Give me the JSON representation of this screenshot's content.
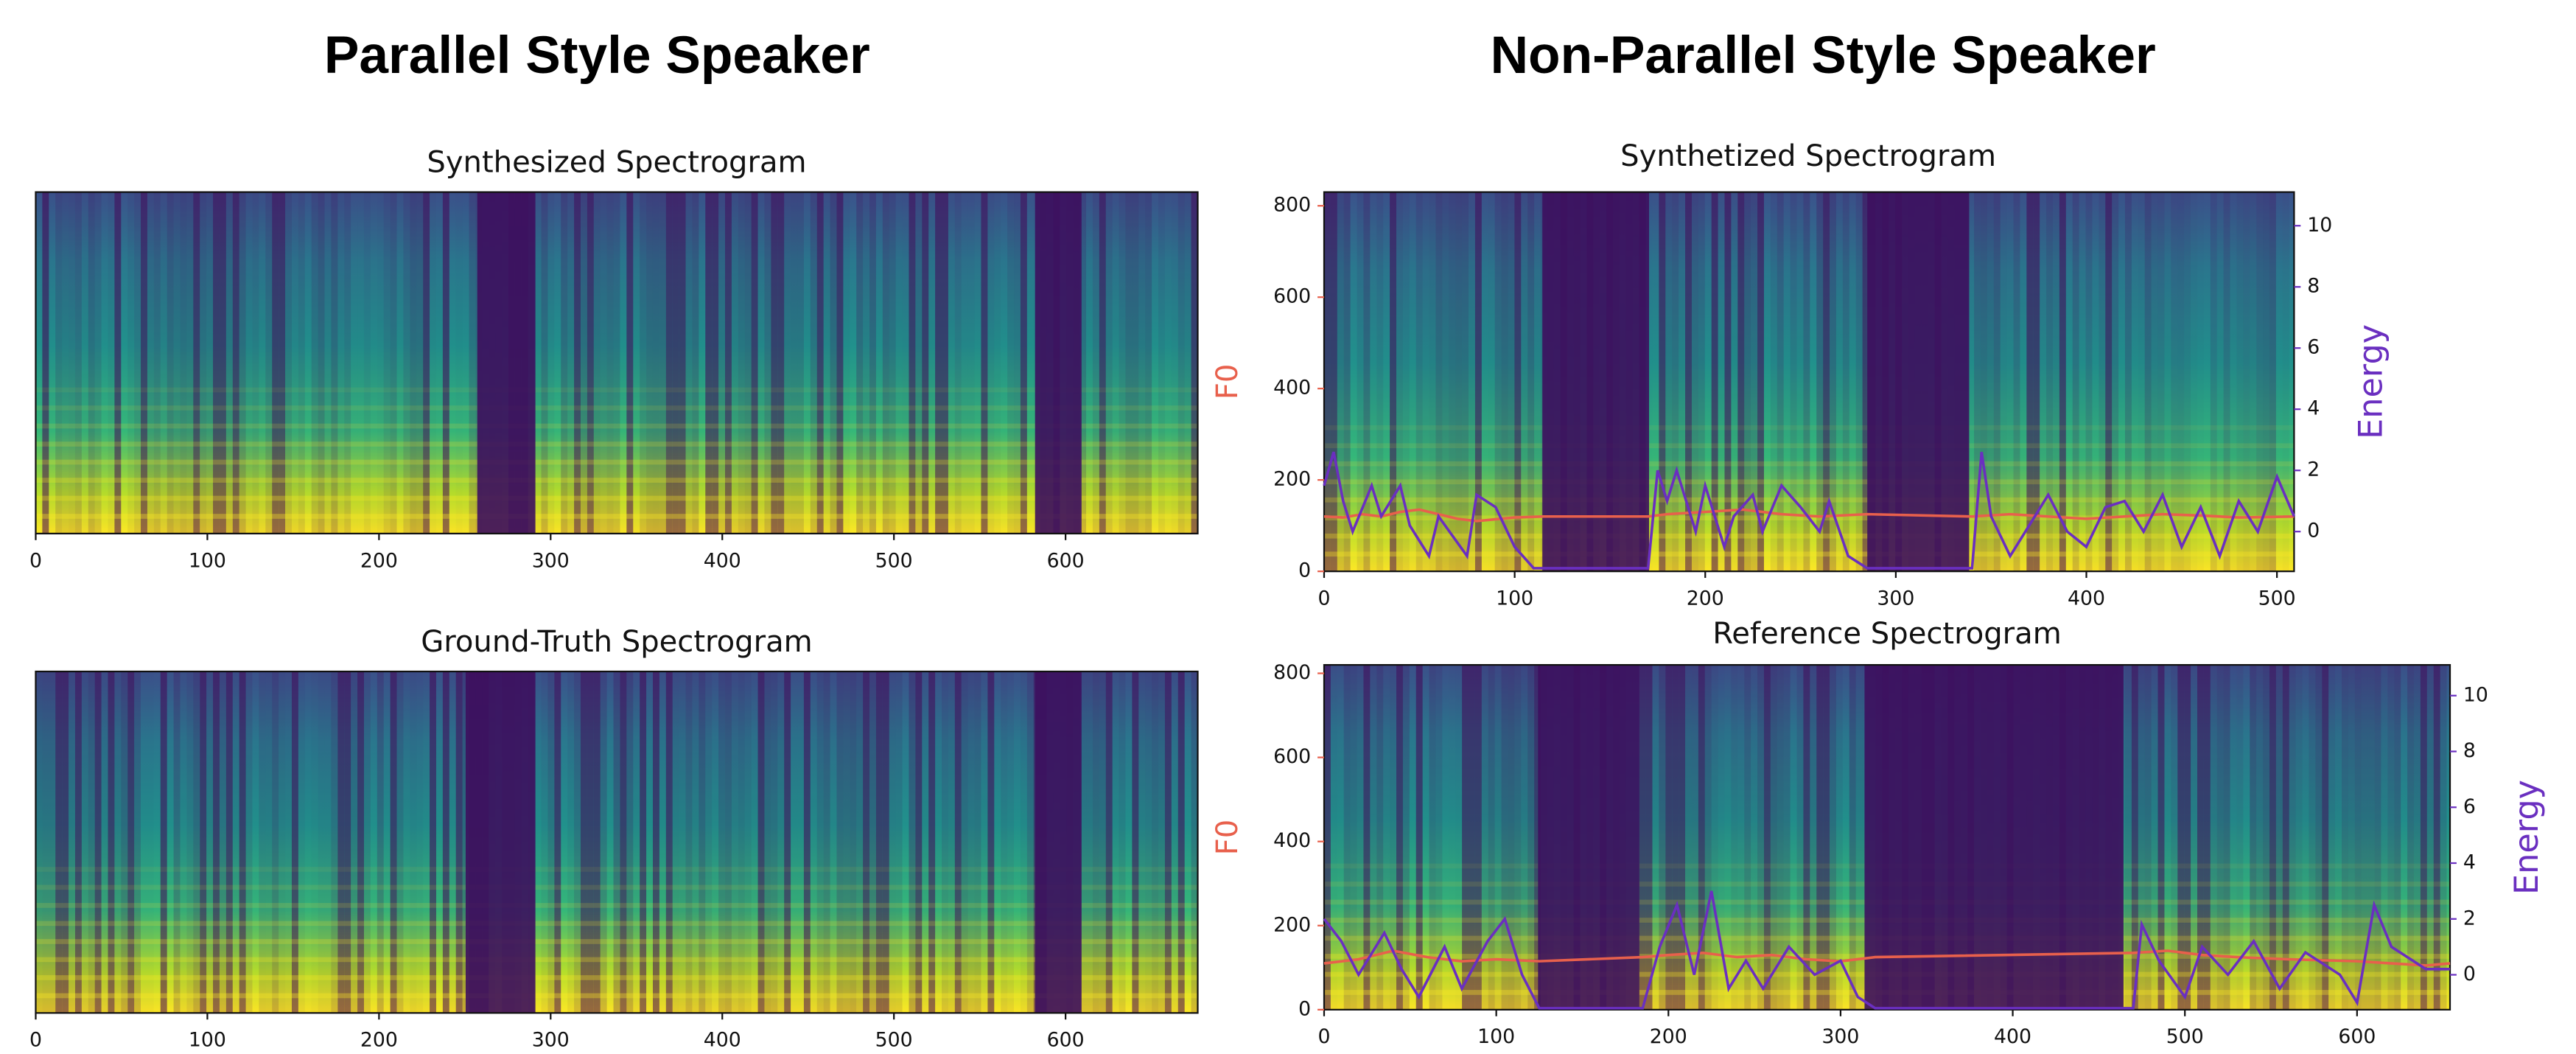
{
  "headings": [
    "Parallel Style Speaker",
    "Non-Parallel Style Speaker"
  ],
  "chart_data": [
    {
      "type": "spectrogram",
      "title": "Synthesized Spectrogram",
      "xlim": [
        0,
        677
      ],
      "xticks": [
        0,
        100,
        200,
        300,
        400,
        500,
        600
      ]
    },
    {
      "type": "spectrogram",
      "title": "Ground-Truth Spectrogram",
      "xlim": [
        0,
        677
      ],
      "xticks": [
        0,
        100,
        200,
        300,
        400,
        500,
        600
      ]
    },
    {
      "type": "spectrogram",
      "title": "Synthetized Spectrogram",
      "xlim": [
        0,
        509
      ],
      "xticks": [
        0,
        100,
        200,
        300,
        400,
        500
      ],
      "ylabel": "F0",
      "ylim": [
        0,
        830
      ],
      "yticks": [
        0,
        200,
        400,
        600,
        800
      ],
      "y2label": "Energy",
      "y2lim": [
        -1.3,
        11.1
      ],
      "y2ticks": [
        0,
        2,
        4,
        6,
        8,
        10
      ],
      "series": [
        {
          "color": "#e8604c",
          "x": [
            0,
            10,
            20,
            30,
            40,
            50,
            60,
            70,
            80,
            100,
            115,
            170,
            180,
            200,
            220,
            240,
            260,
            285,
            340,
            360,
            380,
            400,
            420,
            440,
            460,
            480,
            509
          ],
          "values": [
            120,
            118,
            125,
            120,
            130,
            135,
            125,
            115,
            110,
            118,
            120,
            120,
            125,
            130,
            135,
            125,
            120,
            125,
            120,
            125,
            120,
            115,
            120,
            125,
            122,
            118,
            120
          ]
        },
        {
          "color": "#6a2fc0",
          "axis": "y2",
          "x": [
            0,
            5,
            10,
            15,
            25,
            30,
            40,
            45,
            55,
            60,
            75,
            80,
            90,
            100,
            110,
            115,
            170,
            175,
            180,
            185,
            195,
            200,
            210,
            215,
            225,
            230,
            240,
            250,
            260,
            265,
            275,
            285,
            340,
            345,
            350,
            360,
            380,
            390,
            400,
            410,
            420,
            430,
            440,
            450,
            460,
            470,
            480,
            490,
            500,
            509
          ],
          "values": [
            1.5,
            2.6,
            1.0,
            0.0,
            1.5,
            0.5,
            1.5,
            0.2,
            -0.8,
            0.5,
            -0.8,
            1.2,
            0.8,
            -0.5,
            -1.2,
            -1.2,
            -1.2,
            2.0,
            1.0,
            2.0,
            0.0,
            1.5,
            -0.5,
            0.5,
            1.2,
            0.0,
            1.5,
            0.8,
            0.0,
            1.0,
            -0.8,
            -1.2,
            -1.2,
            2.6,
            0.5,
            -0.8,
            1.2,
            0.0,
            -0.5,
            0.8,
            1.0,
            0.0,
            1.2,
            -0.5,
            0.8,
            -0.8,
            1.0,
            0.0,
            1.8,
            0.5
          ]
        }
      ]
    },
    {
      "type": "spectrogram",
      "title": "Reference Spectrogram",
      "xlim": [
        0,
        654
      ],
      "xticks": [
        0,
        100,
        200,
        300,
        400,
        500,
        600
      ],
      "ylabel": "F0",
      "ylim": [
        0,
        820
      ],
      "yticks": [
        0,
        200,
        400,
        600,
        800
      ],
      "y2label": "Energy",
      "y2lim": [
        -1.25,
        11.1
      ],
      "y2ticks": [
        0,
        2,
        4,
        6,
        8,
        10
      ],
      "series": [
        {
          "color": "#e8604c",
          "x": [
            0,
            20,
            40,
            60,
            80,
            100,
            125,
            185,
            200,
            220,
            240,
            260,
            280,
            300,
            320,
            470,
            490,
            510,
            530,
            560,
            600,
            620,
            640,
            654
          ],
          "values": [
            110,
            120,
            140,
            125,
            115,
            120,
            115,
            125,
            130,
            135,
            125,
            130,
            120,
            115,
            125,
            135,
            140,
            130,
            125,
            120,
            115,
            110,
            105,
            110
          ]
        },
        {
          "color": "#6a2fc0",
          "axis": "y2",
          "x": [
            0,
            10,
            20,
            35,
            45,
            55,
            70,
            80,
            95,
            105,
            115,
            125,
            185,
            195,
            205,
            215,
            225,
            235,
            245,
            255,
            270,
            285,
            300,
            310,
            320,
            470,
            475,
            485,
            500,
            510,
            525,
            540,
            555,
            570,
            590,
            600,
            610,
            620,
            640,
            654
          ],
          "values": [
            2.0,
            1.2,
            0.0,
            1.5,
            0.2,
            -0.8,
            1.0,
            -0.5,
            1.2,
            2.0,
            0.0,
            -1.2,
            -1.2,
            1.0,
            2.5,
            0.0,
            3.0,
            -0.5,
            0.5,
            -0.5,
            1.0,
            0.0,
            0.5,
            -0.8,
            -1.2,
            -1.2,
            1.8,
            0.5,
            -0.8,
            1.0,
            0.0,
            1.2,
            -0.5,
            0.8,
            0.0,
            -1.0,
            2.5,
            1.0,
            0.2,
            0.2
          ]
        }
      ]
    }
  ]
}
